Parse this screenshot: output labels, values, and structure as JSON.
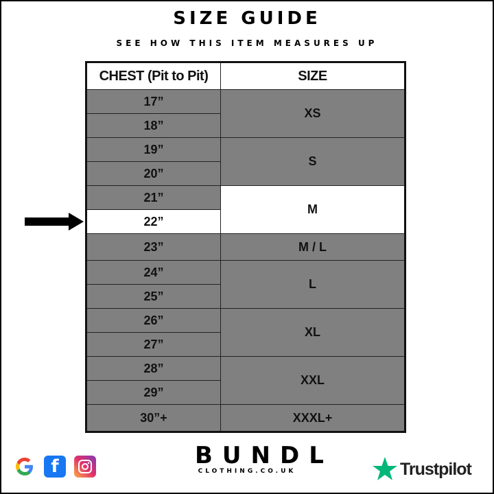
{
  "title": "SIZE GUIDE",
  "subtitle": "SEE HOW THIS ITEM MEASURES UP",
  "table": {
    "headers": [
      "CHEST (Pit to Pit)",
      "SIZE"
    ],
    "chest": [
      "17”",
      "18”",
      "19”",
      "20”",
      "21”",
      "22”",
      "23”",
      "24”",
      "25”",
      "26”",
      "27”",
      "28”",
      "29”",
      "30”+"
    ],
    "sizes": [
      "XS",
      "S",
      "M",
      "M / L",
      "L",
      "XL",
      "XXL",
      "XXXL+"
    ],
    "highlighted_size": "M",
    "highlighted_chest": "22”"
  },
  "footer": {
    "brand": "BUNDL",
    "brand_sub": "CLOTHING.CO.UK",
    "trustpilot": "Trustpilot",
    "social_icons": [
      "google-icon",
      "facebook-icon",
      "instagram-icon"
    ]
  },
  "colors": {
    "cell_gray": "#808080",
    "highlight": "#ffffff",
    "trustpilot_green": "#00b67a"
  }
}
